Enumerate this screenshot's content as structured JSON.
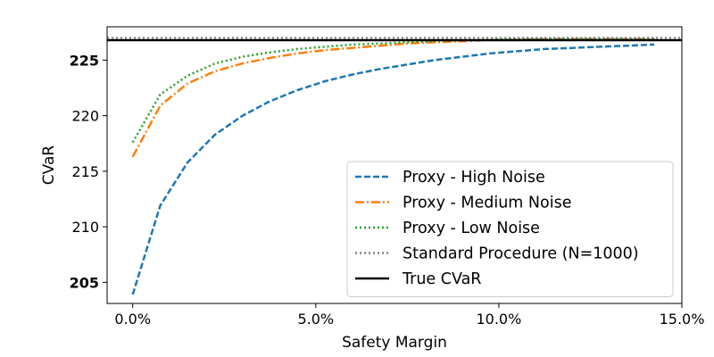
{
  "chart_data": {
    "type": "line",
    "title": "",
    "xlabel": "Safety Margin",
    "ylabel": "CVaR",
    "xlim": [
      -0.007,
      0.15
    ],
    "ylim": [
      203.1,
      228.0
    ],
    "x_ticks": [
      {
        "value": 0.0,
        "label": "0.0%"
      },
      {
        "value": 0.05,
        "label": "5.0%"
      },
      {
        "value": 0.1,
        "label": "10.0%"
      },
      {
        "value": 0.15,
        "label": "15.0%"
      }
    ],
    "y_ticks": [
      {
        "value": 205,
        "label": "205",
        "bold": true
      },
      {
        "value": 210,
        "label": "210",
        "bold": false
      },
      {
        "value": 215,
        "label": "215",
        "bold": false
      },
      {
        "value": 220,
        "label": "220",
        "bold": false
      },
      {
        "value": 225,
        "label": "225",
        "bold": true
      }
    ],
    "grid": false,
    "legend_position": "lower-right",
    "series": [
      {
        "name": "Proxy - High Noise",
        "color": "#1f77b4",
        "style": "dashed",
        "x": [
          0.0,
          0.0075,
          0.015,
          0.0225,
          0.03,
          0.0375,
          0.045,
          0.0525,
          0.06,
          0.0675,
          0.075,
          0.0825,
          0.09,
          0.0975,
          0.105,
          0.1125,
          0.12,
          0.1275,
          0.135,
          0.1425
        ],
        "y": [
          203.9,
          211.9,
          215.8,
          218.3,
          220.0,
          221.3,
          222.3,
          223.1,
          223.7,
          224.2,
          224.6,
          225.0,
          225.3,
          225.6,
          225.8,
          226.0,
          226.1,
          226.2,
          226.3,
          226.4
        ]
      },
      {
        "name": "Proxy - Medium Noise",
        "color": "#ff7f0e",
        "style": "dashdot",
        "x": [
          0.0,
          0.0075,
          0.015,
          0.0225,
          0.03,
          0.0375,
          0.045,
          0.0525,
          0.06,
          0.0675,
          0.075,
          0.0825,
          0.09,
          0.0975,
          0.105,
          0.1125,
          0.12,
          0.1275,
          0.135,
          0.1425
        ],
        "y": [
          216.3,
          220.9,
          222.9,
          224.0,
          224.7,
          225.2,
          225.6,
          225.9,
          226.1,
          226.3,
          226.5,
          226.6,
          226.7,
          226.8,
          226.8,
          226.9,
          226.9,
          226.9,
          226.9,
          226.9
        ]
      },
      {
        "name": "Proxy - Low Noise",
        "color": "#2ca02c",
        "style": "dotted",
        "x": [
          0.0,
          0.0075,
          0.015,
          0.0225,
          0.03,
          0.0375,
          0.045,
          0.0525,
          0.06,
          0.0675,
          0.075,
          0.0825,
          0.09,
          0.0975,
          0.105,
          0.1125,
          0.12,
          0.1275,
          0.135,
          0.1425
        ],
        "y": [
          217.6,
          221.9,
          223.6,
          224.7,
          225.3,
          225.7,
          226.0,
          226.2,
          226.4,
          226.5,
          226.6,
          226.7,
          226.8,
          226.8,
          226.9,
          226.9,
          226.9,
          226.9,
          226.9,
          226.9
        ]
      },
      {
        "name": "Standard Procedure (N=1000)",
        "color": "#7f7f7f",
        "style": "dotted",
        "type": "hline",
        "value": 227.0
      },
      {
        "name": "True CVaR",
        "color": "#000000",
        "style": "solid",
        "type": "hline",
        "value": 226.8
      }
    ]
  }
}
